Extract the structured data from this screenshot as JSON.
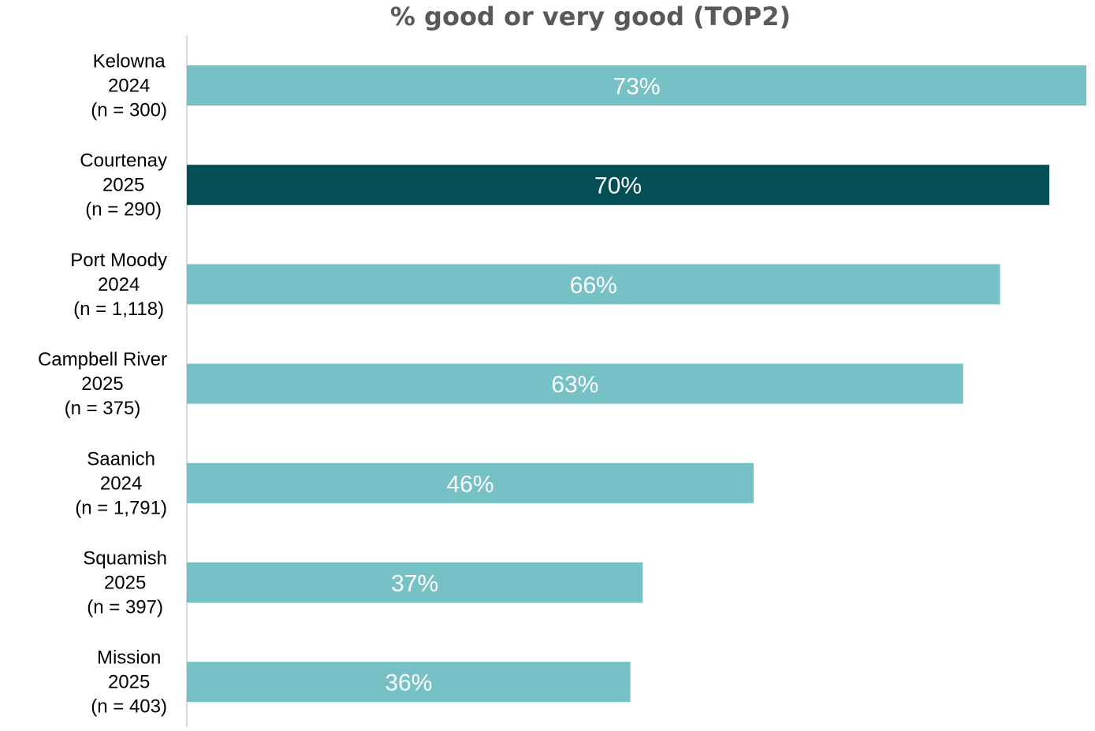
{
  "chart_data": {
    "type": "bar",
    "orientation": "horizontal",
    "title": "% good or very good (TOP2)",
    "xlabel": "",
    "ylabel": "",
    "xlim": [
      0,
      73
    ],
    "grid": false,
    "legend": "none",
    "value_suffix": "%",
    "categories": [
      {
        "name": "Kelowna",
        "year": "2024",
        "n": "(n = 300)"
      },
      {
        "name": "Courtenay",
        "year": "2025",
        "n": "(n = 290)"
      },
      {
        "name": "Port Moody",
        "year": "2024",
        "n": "(n = 1,118)"
      },
      {
        "name": "Campbell River",
        "year": "2025",
        "n": "(n = 375)"
      },
      {
        "name": "Saanich",
        "year": "2024",
        "n": "(n = 1,791)"
      },
      {
        "name": "Squamish",
        "year": "2025",
        "n": "(n = 397)"
      },
      {
        "name": "Mission",
        "year": "2025",
        "n": "(n = 403)"
      }
    ],
    "values": [
      73,
      70,
      66,
      63,
      46,
      37,
      36
    ],
    "data_labels": [
      "73%",
      "70%",
      "66%",
      "63%",
      "46%",
      "37%",
      "36%"
    ],
    "highlight_index": 1,
    "colors": {
      "bar": "#75c1c6",
      "highlight": "#044f56",
      "label": "#ffffff",
      "axis": "#d9d9d9",
      "category_text": "#000000",
      "title": "#595959"
    }
  }
}
